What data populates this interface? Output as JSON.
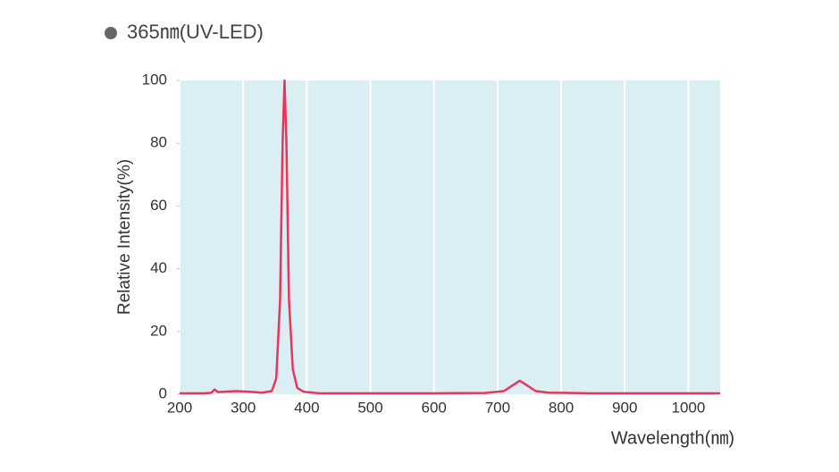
{
  "chart_data": {
    "type": "line",
    "title": "365㎚(UV-LED)",
    "x_label": "Wavelength(㎚)",
    "y_label": "Relative Intensity(%)",
    "x": [
      200,
      240,
      250,
      255,
      260,
      270,
      290,
      310,
      330,
      345,
      352,
      358,
      362,
      365,
      368,
      372,
      378,
      385,
      395,
      420,
      500,
      600,
      680,
      710,
      725,
      735,
      745,
      760,
      780,
      850,
      1050
    ],
    "series": [
      {
        "name": "365㎚(UV-LED)",
        "color": "#e8365a",
        "values": [
          0.3,
          0.3,
          0.5,
          1.5,
          0.7,
          0.8,
          1,
          0.8,
          0.5,
          1,
          5,
          30,
          80,
          100,
          80,
          30,
          8,
          2,
          0.8,
          0.3,
          0.3,
          0.3,
          0.4,
          1,
          3,
          4.3,
          3,
          1,
          0.5,
          0.3,
          0.3
        ]
      }
    ],
    "xlim": [
      200,
      1050
    ],
    "xticks": [
      200,
      300,
      400,
      500,
      600,
      700,
      800,
      900,
      1000
    ],
    "ylim": [
      0,
      100
    ],
    "yticks": [
      0,
      20,
      40,
      60,
      80,
      100
    ],
    "grid": "x",
    "background": "#dbeef4"
  }
}
